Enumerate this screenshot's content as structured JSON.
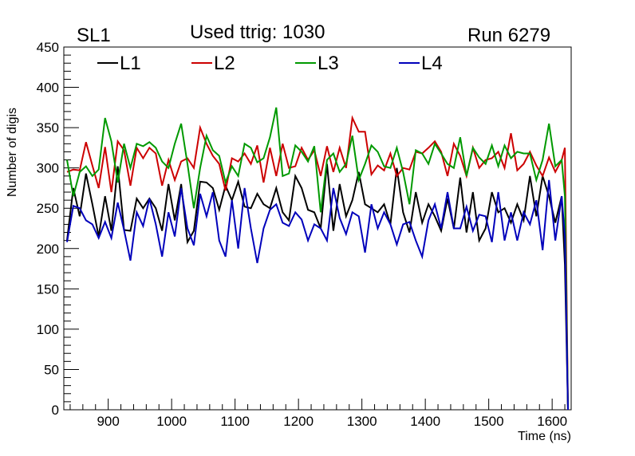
{
  "chart_data": {
    "type": "line",
    "superlayer_label": "SL1",
    "title": "Used ttrig: 1030",
    "run_label": "Run 6279",
    "xlabel": "Time (ns)",
    "ylabel": "Number of digis",
    "xlim": [
      830,
      1630
    ],
    "ylim": [
      0,
      450
    ],
    "x_ticks": [
      900,
      1000,
      1100,
      1200,
      1300,
      1400,
      1500,
      1600
    ],
    "y_ticks": [
      0,
      50,
      100,
      150,
      200,
      250,
      300,
      350,
      400,
      450
    ],
    "grid": false,
    "legend_position": "top-left",
    "x": [
      835,
      845,
      855,
      865,
      875,
      885,
      895,
      905,
      915,
      925,
      935,
      945,
      955,
      965,
      975,
      985,
      995,
      1005,
      1015,
      1025,
      1035,
      1045,
      1055,
      1065,
      1075,
      1085,
      1095,
      1105,
      1115,
      1125,
      1135,
      1145,
      1155,
      1165,
      1175,
      1185,
      1195,
      1205,
      1215,
      1225,
      1235,
      1245,
      1255,
      1265,
      1275,
      1285,
      1295,
      1305,
      1315,
      1325,
      1335,
      1345,
      1355,
      1365,
      1375,
      1385,
      1395,
      1405,
      1415,
      1425,
      1435,
      1445,
      1455,
      1465,
      1475,
      1485,
      1495,
      1505,
      1515,
      1525,
      1535,
      1545,
      1555,
      1565,
      1575,
      1585,
      1595,
      1605,
      1615,
      1620,
      1625
    ],
    "series": [
      {
        "name": "L1",
        "color": "#000000",
        "values": [
          210,
          275,
          240,
          293,
          255,
          215,
          265,
          222,
          302,
          223,
          222,
          262,
          250,
          262,
          250,
          222,
          280,
          235,
          280,
          208,
          222,
          283,
          282,
          275,
          248,
          278,
          260,
          283,
          252,
          250,
          268,
          255,
          250,
          275,
          245,
          235,
          290,
          275,
          248,
          245,
          225,
          305,
          222,
          280,
          240,
          260,
          295,
          255,
          250,
          245,
          255,
          230,
          300,
          245,
          220,
          270,
          232,
          255,
          240,
          222,
          262,
          225,
          288,
          220,
          270,
          210,
          225,
          270,
          245,
          250,
          232,
          255,
          235,
          290,
          240,
          290,
          265,
          232,
          265,
          180,
          0
        ]
      },
      {
        "name": "L2",
        "color": "#cc0000",
        "values": [
          295,
          298,
          297,
          332,
          303,
          275,
          326,
          270,
          333,
          322,
          278,
          325,
          312,
          325,
          318,
          278,
          310,
          285,
          308,
          312,
          300,
          350,
          330,
          315,
          305,
          272,
          312,
          308,
          318,
          305,
          328,
          282,
          325,
          290,
          330,
          300,
          302,
          325,
          310,
          322,
          290,
          327,
          295,
          325,
          300,
          362,
          345,
          345,
          292,
          303,
          297,
          318,
          290,
          300,
          298,
          320,
          318,
          325,
          333,
          320,
          290,
          330,
          315,
          290,
          325,
          300,
          310,
          312,
          320,
          300,
          343,
          297,
          305,
          320,
          303,
          290,
          313,
          295,
          310,
          325,
          0
        ]
      },
      {
        "name": "L3",
        "color": "#009900",
        "values": [
          310,
          265,
          295,
          302,
          290,
          298,
          362,
          333,
          282,
          330,
          300,
          330,
          327,
          332,
          325,
          308,
          300,
          330,
          355,
          305,
          250,
          300,
          340,
          322,
          315,
          282,
          302,
          290,
          330,
          325,
          307,
          312,
          338,
          375,
          290,
          293,
          328,
          320,
          308,
          327,
          245,
          310,
          318,
          295,
          305,
          340,
          285,
          305,
          328,
          320,
          302,
          300,
          325,
          295,
          255,
          322,
          318,
          305,
          330,
          318,
          305,
          300,
          338,
          290,
          325,
          313,
          305,
          328,
          302,
          328,
          312,
          320,
          318,
          318,
          285,
          310,
          355,
          302,
          310,
          265,
          0
        ]
      },
      {
        "name": "L4",
        "color": "#0000bb",
        "values": [
          208,
          253,
          250,
          235,
          230,
          213,
          233,
          213,
          257,
          223,
          185,
          245,
          228,
          262,
          230,
          190,
          245,
          215,
          275,
          225,
          204,
          268,
          240,
          270,
          210,
          190,
          260,
          200,
          275,
          225,
          182,
          225,
          248,
          255,
          232,
          228,
          245,
          236,
          210,
          230,
          225,
          210,
          275,
          238,
          218,
          245,
          240,
          195,
          255,
          225,
          245,
          230,
          205,
          230,
          233,
          210,
          190,
          235,
          255,
          225,
          270,
          225,
          225,
          252,
          222,
          242,
          240,
          208,
          270,
          210,
          245,
          210,
          245,
          230,
          260,
          198,
          285,
          210,
          265,
          215,
          0
        ]
      }
    ]
  }
}
